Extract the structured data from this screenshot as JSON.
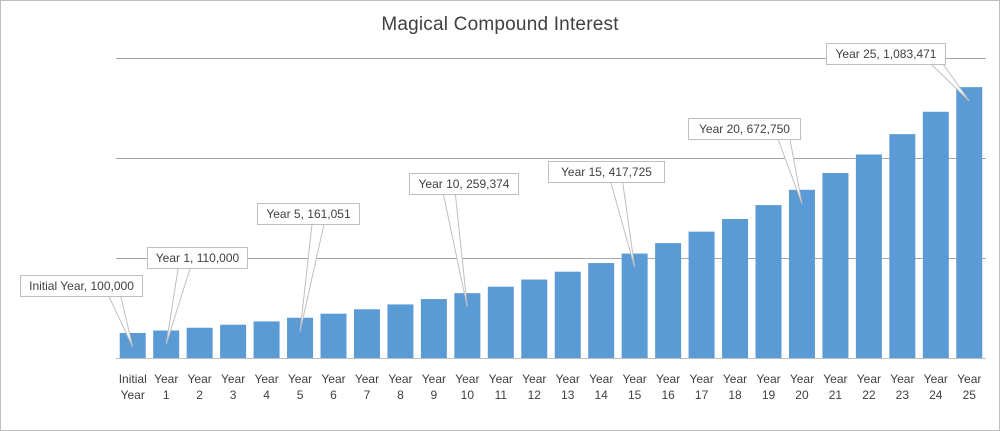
{
  "chart_data": {
    "type": "bar",
    "title": "Magical Compound Interest",
    "xlabel": "",
    "ylabel": "",
    "ylim": [
      0,
      1200000
    ],
    "gridlines": [
      400000,
      800000,
      1200000
    ],
    "grid": true,
    "legend": "none",
    "colors": {
      "bar": "#5b9bd5",
      "gridline": "#a6a6a6",
      "axis": "#bfbfbf",
      "callout_border": "#bfbfbf",
      "text": "#404040"
    },
    "categories": [
      "Initial Year",
      "Year 1",
      "Year 2",
      "Year 3",
      "Year 4",
      "Year 5",
      "Year 6",
      "Year 7",
      "Year 8",
      "Year 9",
      "Year 10",
      "Year 11",
      "Year 12",
      "Year 13",
      "Year 14",
      "Year 15",
      "Year 16",
      "Year 17",
      "Year 18",
      "Year 19",
      "Year 20",
      "Year 21",
      "Year 22",
      "Year 23",
      "Year 24",
      "Year 25"
    ],
    "tick_labels": [
      [
        "Initial",
        "Year"
      ],
      [
        "Year",
        "1"
      ],
      [
        "Year",
        "2"
      ],
      [
        "Year",
        "3"
      ],
      [
        "Year",
        "4"
      ],
      [
        "Year",
        "5"
      ],
      [
        "Year",
        "6"
      ],
      [
        "Year",
        "7"
      ],
      [
        "Year",
        "8"
      ],
      [
        "Year",
        "9"
      ],
      [
        "Year",
        "10"
      ],
      [
        "Year",
        "11"
      ],
      [
        "Year",
        "12"
      ],
      [
        "Year",
        "13"
      ],
      [
        "Year",
        "14"
      ],
      [
        "Year",
        "15"
      ],
      [
        "Year",
        "16"
      ],
      [
        "Year",
        "17"
      ],
      [
        "Year",
        "18"
      ],
      [
        "Year",
        "19"
      ],
      [
        "Year",
        "20"
      ],
      [
        "Year",
        "21"
      ],
      [
        "Year",
        "22"
      ],
      [
        "Year",
        "23"
      ],
      [
        "Year",
        "24"
      ],
      [
        "Year",
        "25"
      ]
    ],
    "values": [
      100000,
      110000,
      121000,
      133100,
      146410,
      161051,
      177156,
      194872,
      214359,
      235795,
      259374,
      285312,
      313843,
      345227,
      379750,
      417725,
      459497,
      505447,
      555992,
      611591,
      672750,
      740025,
      814027,
      895430,
      984973,
      1083471
    ],
    "callouts": [
      {
        "index": 0,
        "text": "Initial Year, 100,000"
      },
      {
        "index": 1,
        "text": "Year 1, 110,000"
      },
      {
        "index": 5,
        "text": "Year 5, 161,051"
      },
      {
        "index": 10,
        "text": "Year 10, 259,374"
      },
      {
        "index": 15,
        "text": "Year 15, 417,725"
      },
      {
        "index": 20,
        "text": "Year 20, 672,750"
      },
      {
        "index": 25,
        "text": "Year 25, 1,083,471"
      }
    ]
  }
}
